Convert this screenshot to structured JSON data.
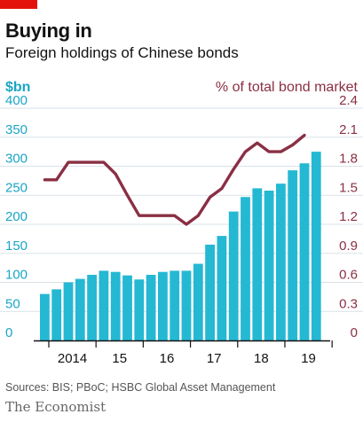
{
  "header": {
    "title": "Buying in",
    "subtitle": "Foreign holdings of Chinese bonds"
  },
  "colors": {
    "bars": "#25b8d3",
    "line": "#8a2f44",
    "left_axis": "#1aa5c4",
    "right_axis": "#8a2f44",
    "accent": "#e3120b"
  },
  "chart_data": {
    "type": "bar",
    "left_axis_label": "$bn",
    "right_axis_label": "% of total bond market",
    "left_ylim": [
      0,
      400
    ],
    "left_ticks": [
      "0",
      "50",
      "100",
      "150",
      "200",
      "250",
      "300",
      "350",
      "400"
    ],
    "right_ylim": [
      0,
      2.4
    ],
    "right_ticks": [
      "0",
      "0.3",
      "0.6",
      "0.9",
      "1.2",
      "1.5",
      "1.8",
      "2.1",
      "2.4"
    ],
    "x_tick_labels": [
      "2014",
      "15",
      "16",
      "17",
      "18",
      "19"
    ],
    "grid": true,
    "series": [
      {
        "type": "bar",
        "axis": "left",
        "x": [
          "2013-Q4",
          "2014-Q1",
          "2014-Q2",
          "2014-Q3",
          "2014-Q4",
          "2015-Q1",
          "2015-Q2",
          "2015-Q3",
          "2015-Q4",
          "2016-Q1",
          "2016-Q2",
          "2016-Q3",
          "2016-Q4",
          "2017-Q1",
          "2017-Q2",
          "2017-Q3",
          "2017-Q4",
          "2018-Q1",
          "2018-Q2",
          "2018-Q3",
          "2018-Q4",
          "2019-Q1",
          "2019-Q2",
          "2019-Q3"
        ],
        "values": [
          80,
          88,
          100,
          106,
          113,
          120,
          118,
          112,
          105,
          113,
          118,
          120,
          120,
          132,
          165,
          180,
          222,
          247,
          262,
          258,
          270,
          293,
          305,
          325
        ]
      },
      {
        "type": "line",
        "axis": "right",
        "x": [
          "2013-Q4",
          "2014-Q1",
          "2014-Q2",
          "2014-Q3",
          "2014-Q4",
          "2015-Q1",
          "2015-Q2",
          "2015-Q3",
          "2015-Q4",
          "2016-Q1",
          "2016-Q2",
          "2016-Q3",
          "2016-Q4",
          "2017-Q1",
          "2017-Q2",
          "2017-Q3",
          "2017-Q4",
          "2018-Q1",
          "2018-Q2",
          "2018-Q3",
          "2018-Q4",
          "2019-Q1",
          "2019-Q2",
          "2019-Q3"
        ],
        "values": [
          1.66,
          1.66,
          1.84,
          1.84,
          1.84,
          1.84,
          1.72,
          1.5,
          1.29,
          1.29,
          1.29,
          1.29,
          1.2,
          1.29,
          1.48,
          1.57,
          1.77,
          1.95,
          2.04,
          1.95,
          1.95,
          2.02,
          2.12,
          null
        ]
      }
    ]
  },
  "footer": {
    "source": "Sources: BIS; PBoC; HSBC Global Asset Management",
    "brand": "The Economist"
  }
}
